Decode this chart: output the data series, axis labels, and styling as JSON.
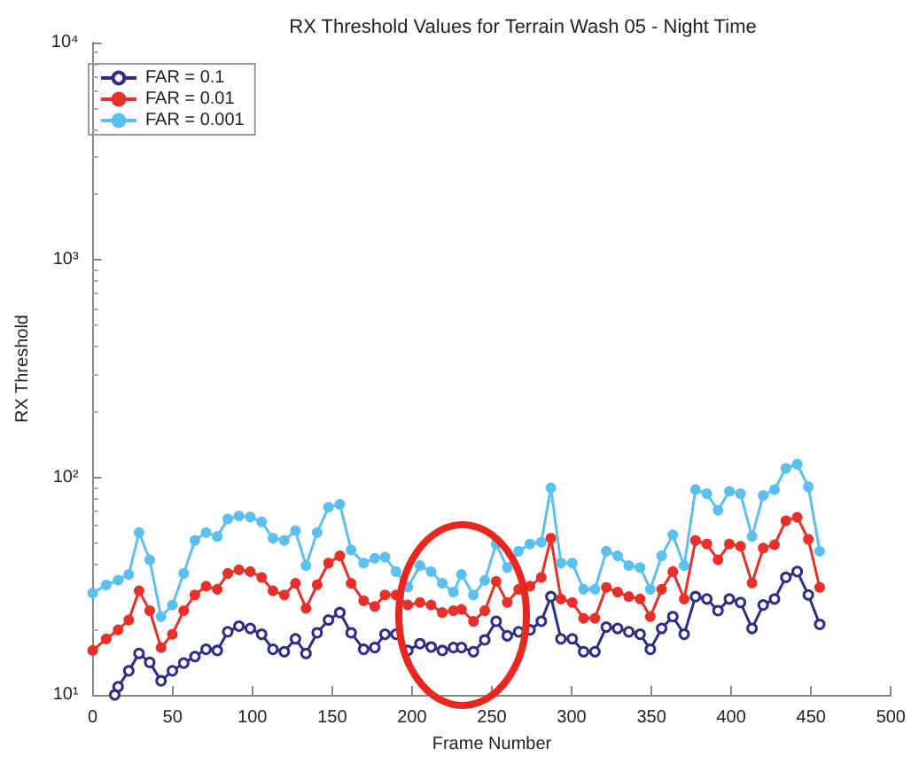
{
  "chart_data": {
    "type": "line",
    "title": "RX Threshold Values for Terrain Wash 05 - Night Time",
    "xlabel": "Frame Number",
    "ylabel": "RX Threshold",
    "log": "y",
    "grid": false,
    "legend": "top left",
    "marker": "circle",
    "line_style": "solid",
    "xlim": [
      0,
      500
    ],
    "xticks": [
      0,
      50,
      100,
      150,
      200,
      250,
      300,
      350,
      400,
      450,
      500
    ],
    "ylim": [
      10,
      10000
    ],
    "yticks": [
      {
        "value": 10,
        "label": "10¹"
      },
      {
        "value": 100,
        "label": "10²"
      },
      {
        "value": 1000,
        "label": "10³"
      },
      {
        "value": 10000,
        "label": "10⁴"
      }
    ],
    "series": [
      {
        "name": "FAR = 0.1",
        "color": "#2e2e8a",
        "x": [
          13.8,
          15.9,
          22.6,
          29,
          35.7,
          42.8,
          49.9,
          57,
          64,
          71,
          78,
          84.6,
          91.6,
          98.7,
          105.8,
          112.9,
          120,
          127,
          133.6,
          140.6,
          147.7,
          154.8,
          161.9,
          169.7,
          176.7,
          183.1,
          190,
          197.4,
          205,
          212,
          219,
          226,
          231,
          238.5,
          245.6,
          252.7,
          259.7,
          266.8,
          273.9,
          281,
          287,
          293.3,
          300.4,
          307.5,
          314.6,
          321.7,
          328.8,
          335.8,
          342.9,
          349.3,
          356.4,
          363.4,
          370.5,
          377.6,
          384.7,
          391.7,
          398.8,
          405.8,
          413,
          420,
          427.1,
          434.2,
          441.3,
          448.3,
          455.4
        ],
        "values": [
          10,
          10.9,
          12.9,
          15.5,
          14.1,
          11.6,
          12.9,
          14,
          15,
          16.2,
          16,
          19.5,
          20.7,
          20.2,
          19,
          16.2,
          15.8,
          18.1,
          15.5,
          19.3,
          22.1,
          23.9,
          19.3,
          16.2,
          16.5,
          19,
          19,
          16,
          17.2,
          16.6,
          16,
          16.5,
          16.5,
          15.8,
          17.9,
          21.8,
          18.7,
          19.5,
          19.9,
          21.8,
          28.3,
          18.1,
          18.1,
          15.8,
          15.8,
          20.5,
          20.2,
          19.5,
          19,
          16.2,
          20.2,
          22.9,
          19,
          28.3,
          27.6,
          24.4,
          27.6,
          26.6,
          20.2,
          25.9,
          27.6,
          34.7,
          36.9,
          28.8,
          21.1
        ]
      },
      {
        "name": "FAR = 0.01",
        "color": "#e8302a",
        "x": [
          0,
          8.5,
          15.9,
          22.6,
          29,
          35.7,
          42.8,
          49.9,
          57,
          64,
          71,
          78,
          84.6,
          91.6,
          98.7,
          105.8,
          112.9,
          120,
          127,
          133.6,
          140.6,
          147.7,
          154.8,
          161.9,
          169.7,
          176.7,
          183.1,
          190,
          197.4,
          205,
          212,
          219,
          226,
          231,
          238.5,
          245.6,
          252.7,
          259.7,
          266.8,
          273.9,
          281,
          287,
          293.3,
          300.4,
          307.5,
          314.6,
          321.7,
          328.8,
          335.8,
          342.9,
          349.3,
          356.4,
          363.4,
          370.5,
          377.6,
          384.7,
          391.7,
          398.8,
          405.8,
          413,
          420,
          427.1,
          434.2,
          441.3,
          448.3,
          455.4
        ],
        "values": [
          16,
          18.1,
          19.9,
          22.1,
          30.1,
          24.4,
          16.5,
          19,
          24.4,
          28.8,
          31.6,
          30.6,
          36.2,
          37.6,
          36.9,
          34.7,
          30.1,
          28.8,
          32.6,
          25,
          32.1,
          40.4,
          43.6,
          32.6,
          27.1,
          25.5,
          28.8,
          28.8,
          25.9,
          26.6,
          25.9,
          23.9,
          24.4,
          24.7,
          21.8,
          24.4,
          33.3,
          26.6,
          30.6,
          31.6,
          34.7,
          52.5,
          27.6,
          26.6,
          22.5,
          22.5,
          31.2,
          29.7,
          28.3,
          27.6,
          22.9,
          30.6,
          36.9,
          27.6,
          51.3,
          49.4,
          41.8,
          49.4,
          48.2,
          32.7,
          47.3,
          49,
          63.2,
          65.6,
          51.9,
          31.2
        ]
      },
      {
        "name": "FAR = 0.001",
        "color": "#5bc0ee",
        "x": [
          0,
          8.5,
          15.9,
          22.6,
          29,
          35.7,
          42.8,
          49.9,
          57,
          64,
          71,
          78,
          84.6,
          91.6,
          98.7,
          105.8,
          112.9,
          120,
          127,
          133.6,
          140.6,
          147.7,
          154.8,
          161.9,
          169.7,
          176.7,
          183.1,
          190,
          197.4,
          205,
          212,
          219,
          226,
          231,
          238.5,
          245.6,
          252.7,
          259.7,
          266.8,
          273.9,
          281,
          287,
          293.3,
          300.4,
          307.5,
          314.6,
          321.7,
          328.8,
          335.8,
          342.9,
          349.3,
          356.4,
          363.4,
          370.5,
          377.6,
          384.7,
          391.7,
          398.8,
          405.8,
          413,
          420,
          427.1,
          434.2,
          441.3,
          448.3,
          455.4
        ],
        "values": [
          29.4,
          32,
          33.7,
          35.8,
          55.8,
          41.8,
          22.9,
          25.9,
          36.2,
          51.3,
          55.8,
          53.5,
          64.4,
          66.5,
          65.8,
          62.5,
          52.5,
          51.3,
          56.9,
          39.3,
          55.8,
          72.9,
          75.2,
          46.4,
          40.4,
          42.5,
          43,
          36.9,
          31.3,
          39.3,
          36.9,
          32.6,
          29.7,
          35.8,
          28.8,
          33.6,
          49.4,
          38.5,
          45.8,
          49.4,
          50.4,
          89.6,
          40.4,
          40.4,
          30.6,
          30.6,
          45.8,
          43.6,
          39.3,
          38.5,
          30.6,
          43.6,
          54.5,
          39.3,
          87.9,
          84.2,
          70.7,
          86.3,
          84.2,
          53.5,
          82.6,
          87.9,
          110,
          115,
          90.6,
          45.8
        ]
      }
    ]
  }
}
